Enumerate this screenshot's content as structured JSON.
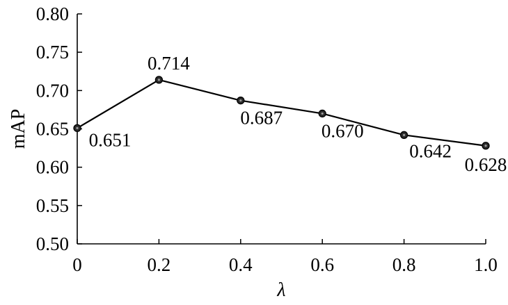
{
  "chart_data": {
    "type": "line",
    "title": "",
    "xlabel": "λ",
    "ylabel": "mAP",
    "xlim": [
      0,
      1.0
    ],
    "ylim": [
      0.5,
      0.8
    ],
    "x_ticks": [
      0,
      0.2,
      0.4,
      0.6,
      0.8,
      1.0
    ],
    "x_tick_labels": [
      "0",
      "0.2",
      "0.4",
      "0.6",
      "0.8",
      "1.0"
    ],
    "y_ticks": [
      0.5,
      0.55,
      0.6,
      0.65,
      0.7,
      0.75,
      0.8
    ],
    "y_tick_labels": [
      "0.50",
      "0.55",
      "0.60",
      "0.65",
      "0.70",
      "0.75",
      "0.80"
    ],
    "grid": false,
    "legend": "none",
    "line_color": "#000000",
    "marker_fill": "#2b2b2b",
    "series": [
      {
        "x": [
          0,
          0.2,
          0.4,
          0.6,
          0.8,
          1.0
        ],
        "values": [
          0.651,
          0.714,
          0.687,
          0.67,
          0.642,
          0.628
        ],
        "data_labels": [
          "0.651",
          "0.714",
          "0.687",
          "0.670",
          "0.642",
          "0.628"
        ]
      }
    ]
  }
}
